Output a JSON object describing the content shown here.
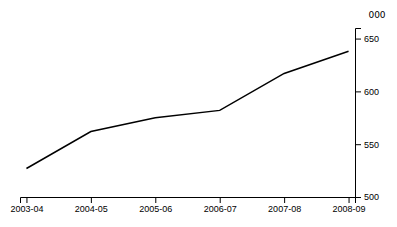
{
  "chart_data": {
    "type": "line",
    "categories": [
      "2003-04",
      "2004-05",
      "2005-06",
      "2006-07",
      "2007-08",
      "2008-09"
    ],
    "values": [
      527,
      562,
      575,
      582,
      617,
      638
    ],
    "color": "#000000",
    "ylim": [
      500,
      660
    ],
    "yticks": [
      500,
      550,
      600,
      650
    ],
    "y_label": "000",
    "grid": false
  }
}
